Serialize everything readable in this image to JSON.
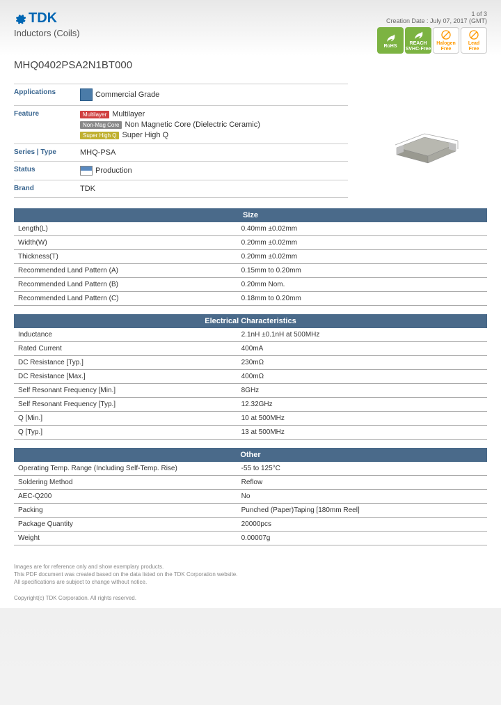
{
  "brand": "TDK",
  "category": "Inductors (Coils)",
  "pageInfo": "1 of 3",
  "creationDate": "Creation Date : July 07, 2017 (GMT)",
  "partNumber": "MHQ0402PSA2N1BT000",
  "badges": [
    {
      "label": "RoHS",
      "bg": "green"
    },
    {
      "label": "REACH\nSVHC-Free",
      "bg": "green"
    },
    {
      "label": "Halogen\nFree",
      "bg": "orange"
    },
    {
      "label": "Lead\nFree",
      "bg": "orange"
    }
  ],
  "attrs": {
    "applications": {
      "label": "Applications",
      "text": "Commercial Grade"
    },
    "feature": {
      "label": "Feature",
      "items": [
        {
          "chip": "Multilayer",
          "chipColor": "red",
          "text": "Multilayer"
        },
        {
          "chip": "Non-Mag Core",
          "chipColor": "gray",
          "text": "Non Magnetic Core (Dielectric Ceramic)"
        },
        {
          "chip": "Super High Q",
          "chipColor": "yellow",
          "text": "Super High Q"
        }
      ]
    },
    "series": {
      "label": "Series | Type",
      "text": "MHQ-PSA"
    },
    "status": {
      "label": "Status",
      "text": "Production"
    },
    "brand": {
      "label": "Brand",
      "text": "TDK"
    }
  },
  "sections": [
    {
      "title": "Size",
      "rows": [
        {
          "k": "Length(L)",
          "v": "0.40mm ±0.02mm"
        },
        {
          "k": "Width(W)",
          "v": "0.20mm ±0.02mm"
        },
        {
          "k": "Thickness(T)",
          "v": "0.20mm ±0.02mm"
        },
        {
          "k": "Recommended Land Pattern (A)",
          "v": "0.15mm to 0.20mm"
        },
        {
          "k": "Recommended Land Pattern (B)",
          "v": "0.20mm Nom."
        },
        {
          "k": "Recommended Land Pattern (C)",
          "v": "0.18mm to 0.20mm"
        }
      ]
    },
    {
      "title": "Electrical Characteristics",
      "rows": [
        {
          "k": "Inductance",
          "v": "2.1nH ±0.1nH at 500MHz"
        },
        {
          "k": "Rated Current",
          "v": "400mA"
        },
        {
          "k": "DC Resistance [Typ.]",
          "v": "230mΩ"
        },
        {
          "k": "DC Resistance [Max.]",
          "v": "400mΩ"
        },
        {
          "k": "Self Resonant Frequency [Min.]",
          "v": "8GHz"
        },
        {
          "k": "Self Resonant Frequency [Typ.]",
          "v": "12.32GHz"
        },
        {
          "k": "Q [Min.]",
          "v": "10 at 500MHz"
        },
        {
          "k": "Q [Typ.]",
          "v": "13 at 500MHz"
        }
      ]
    },
    {
      "title": "Other",
      "rows": [
        {
          "k": "Operating Temp. Range (Including Self-Temp. Rise)",
          "v": "-55 to 125°C"
        },
        {
          "k": "Soldering Method",
          "v": "Reflow"
        },
        {
          "k": "AEC-Q200",
          "v": "No"
        },
        {
          "k": "Packing",
          "v": "Punched (Paper)Taping [180mm Reel]"
        },
        {
          "k": "Package Quantity",
          "v": "20000pcs"
        },
        {
          "k": "Weight",
          "v": "0.00007g"
        }
      ]
    }
  ],
  "footer": [
    "Images are for reference only and show exemplary products.",
    "This PDF document was created based on the data listed on the TDK Corporation website.",
    "All specifications are subject to change without notice."
  ],
  "copyright": "Copyright(c) TDK Corporation. All rights reserved."
}
